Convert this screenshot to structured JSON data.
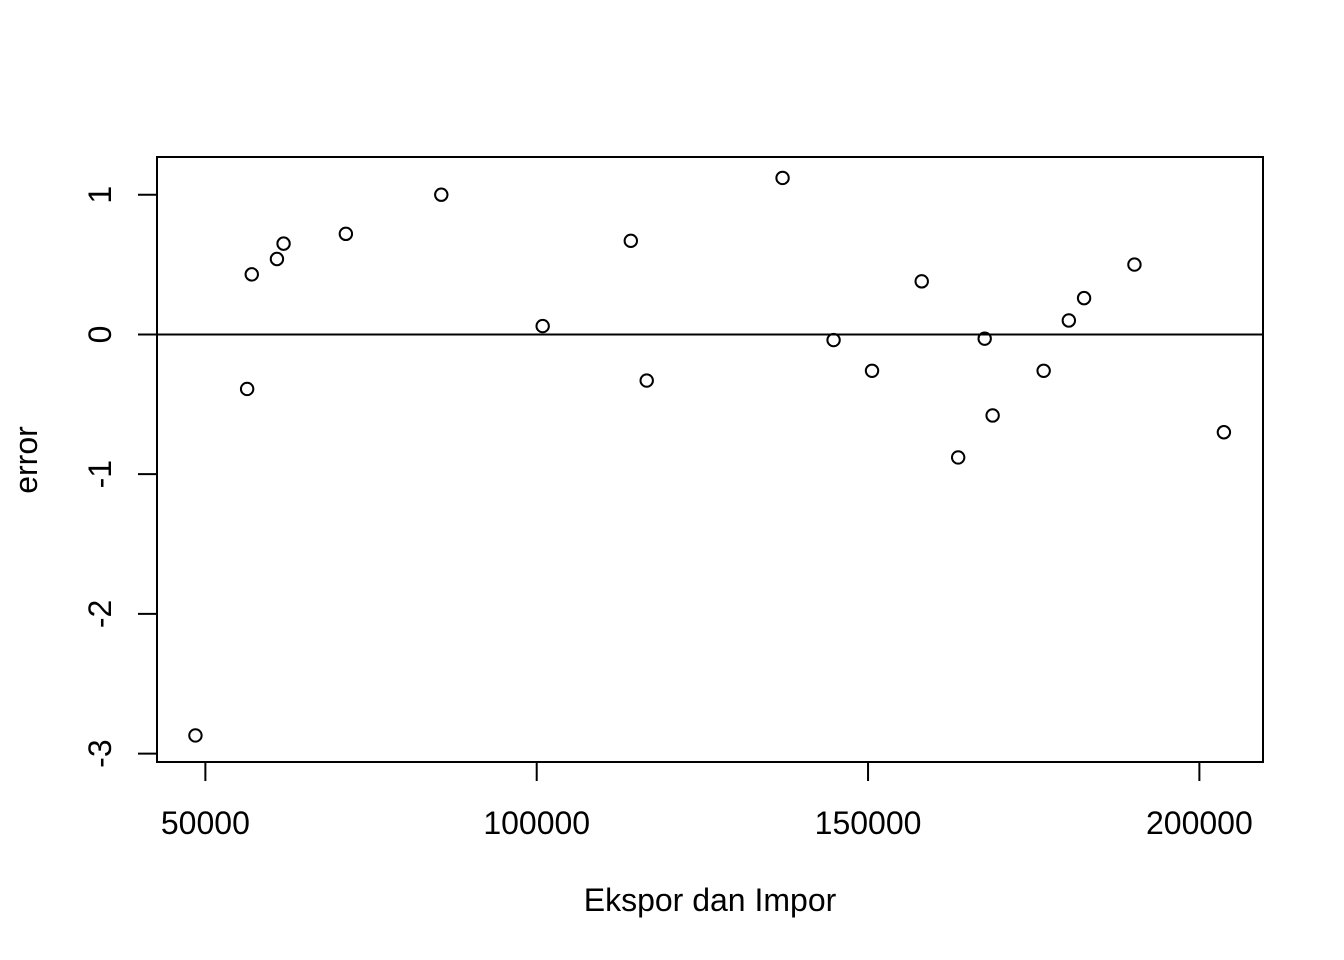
{
  "chart_data": {
    "type": "scatter",
    "title": "",
    "xlabel": "Ekspor dan Impor",
    "ylabel": "error",
    "xlim": [
      42700,
      209600
    ],
    "ylim": [
      -3.06,
      1.27
    ],
    "x_ticks": [
      50000,
      100000,
      150000,
      200000
    ],
    "x_tick_labels": [
      "50000",
      "100000",
      "150000",
      "200000"
    ],
    "y_ticks": [
      -3,
      -2,
      -1,
      0,
      1
    ],
    "y_tick_labels": [
      "-3",
      "-2",
      "-1",
      "0",
      "1"
    ],
    "reference_line": {
      "y": 0,
      "orientation": "horizontal"
    },
    "grid": false,
    "legend": "none",
    "marker": "open-circle",
    "colors": {
      "points": "#000000",
      "axes": "#000000",
      "background": "#ffffff"
    },
    "x": [
      48500,
      56300,
      57000,
      60800,
      61800,
      71200,
      85600,
      100900,
      114200,
      116600,
      137100,
      144800,
      150600,
      158100,
      163600,
      167600,
      168800,
      176500,
      180300,
      182600,
      190200,
      203700
    ],
    "y": [
      -2.87,
      -0.39,
      0.43,
      0.54,
      0.65,
      0.72,
      1.0,
      0.06,
      0.67,
      -0.33,
      1.12,
      -0.04,
      -0.26,
      0.38,
      -0.88,
      -0.03,
      -0.58,
      -0.26,
      0.1,
      0.26,
      0.5,
      -0.7
    ]
  }
}
